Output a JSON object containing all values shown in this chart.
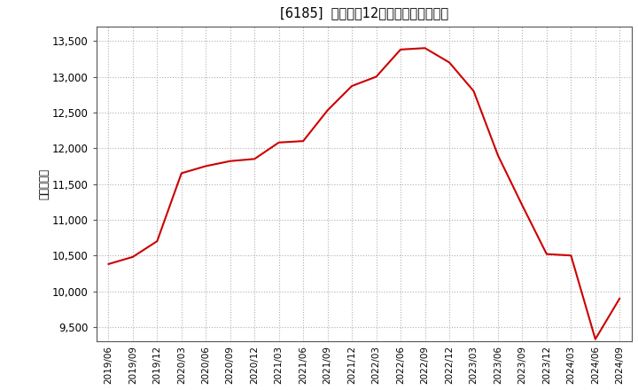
{
  "title": "[6185]  売上高の12か月移動合計の推移",
  "ylabel": "（百万円）",
  "line_color": "#cc0000",
  "background_color": "#ffffff",
  "plot_bg_color": "#ffffff",
  "grid_color": "#b0b0b0",
  "dates": [
    "2019/06",
    "2019/09",
    "2019/12",
    "2020/03",
    "2020/06",
    "2020/09",
    "2020/12",
    "2021/03",
    "2021/06",
    "2021/09",
    "2021/12",
    "2022/03",
    "2022/06",
    "2022/09",
    "2022/12",
    "2023/03",
    "2023/06",
    "2023/09",
    "2023/12",
    "2024/03",
    "2024/06",
    "2024/09"
  ],
  "values": [
    10380,
    10480,
    10700,
    11650,
    11750,
    11820,
    11850,
    12080,
    12100,
    12530,
    12870,
    13000,
    13380,
    13400,
    13200,
    12800,
    11900,
    11200,
    10520,
    10500,
    9330,
    9900
  ],
  "ylim": [
    9300,
    13700
  ],
  "yticks": [
    9500,
    10000,
    10500,
    11000,
    11500,
    12000,
    12500,
    13000,
    13500
  ]
}
